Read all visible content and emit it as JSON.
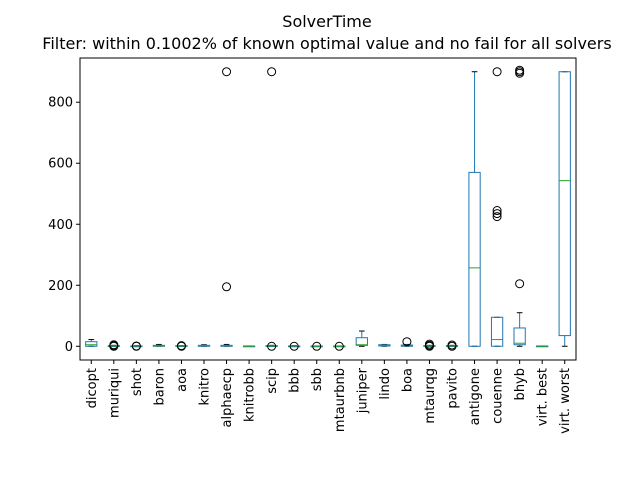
{
  "chart_data": {
    "type": "box",
    "title": "SolverTime",
    "subtitle": "Filter: within 0.1002% of known optimal value and no fail for all solvers",
    "xlabel": "",
    "ylabel": "",
    "ylim": [
      -45,
      945
    ],
    "yticks": [
      0,
      200,
      400,
      600,
      800
    ],
    "legend": "none",
    "grid": false,
    "categories": [
      "dicopt",
      "muriqui",
      "shot",
      "baron",
      "aoa",
      "knitro",
      "alphaecp",
      "knitrobb",
      "scip",
      "bbb",
      "sbb",
      "mtaurbnb",
      "juniper",
      "lindo",
      "boa",
      "mtaurqg",
      "pavito",
      "antigone",
      "couenne",
      "bhyb",
      "virt. best",
      "virt. worst"
    ],
    "boxes": [
      {
        "label": "dicopt",
        "whislo": 0,
        "q1": 0,
        "med": 5,
        "q3": 15,
        "whishi": 22,
        "fliers": []
      },
      {
        "label": "muriqui",
        "whislo": 0,
        "q1": 0,
        "med": 1,
        "q3": 2,
        "whishi": 3,
        "fliers": [
          0,
          2,
          5
        ]
      },
      {
        "label": "shot",
        "whislo": 0,
        "q1": 0,
        "med": 1,
        "q3": 1,
        "whishi": 2,
        "fliers": [
          0,
          1
        ]
      },
      {
        "label": "baron",
        "whislo": 0,
        "q1": 0,
        "med": 1,
        "q3": 3,
        "whishi": 6,
        "fliers": []
      },
      {
        "label": "aoa",
        "whislo": 0,
        "q1": 0,
        "med": 1,
        "q3": 2,
        "whishi": 2,
        "fliers": [
          0,
          2
        ]
      },
      {
        "label": "knitro",
        "whislo": 0,
        "q1": 0,
        "med": 2,
        "q3": 3,
        "whishi": 5,
        "fliers": []
      },
      {
        "label": "alphaecp",
        "whislo": 0,
        "q1": 0,
        "med": 2,
        "q3": 3,
        "whishi": 6,
        "fliers": [
          195,
          900
        ]
      },
      {
        "label": "knitrobb",
        "whislo": 0,
        "q1": 0,
        "med": 0,
        "q3": 1,
        "whishi": 1,
        "fliers": []
      },
      {
        "label": "scip",
        "whislo": 0,
        "q1": 0,
        "med": 1,
        "q3": 2,
        "whishi": 3,
        "fliers": [
          0,
          900
        ]
      },
      {
        "label": "bbb",
        "whislo": 0,
        "q1": 0,
        "med": 1,
        "q3": 1,
        "whishi": 2,
        "fliers": [
          0
        ]
      },
      {
        "label": "sbb",
        "whislo": 0,
        "q1": 0,
        "med": 0,
        "q3": 1,
        "whishi": 1,
        "fliers": [
          0
        ]
      },
      {
        "label": "mtaurbnb",
        "whislo": 0,
        "q1": 0,
        "med": 0,
        "q3": 1,
        "whishi": 1,
        "fliers": [
          0
        ]
      },
      {
        "label": "juniper",
        "whislo": 0,
        "q1": 3,
        "med": 5,
        "q3": 28,
        "whishi": 50,
        "fliers": []
      },
      {
        "label": "lindo",
        "whislo": 0,
        "q1": 1,
        "med": 3,
        "q3": 5,
        "whishi": 6,
        "fliers": []
      },
      {
        "label": "boa",
        "whislo": 0,
        "q1": 0,
        "med": 2,
        "q3": 4,
        "whishi": 6,
        "fliers": [
          15
        ]
      },
      {
        "label": "mtaurqg",
        "whislo": 0,
        "q1": 0,
        "med": 1,
        "q3": 2,
        "whishi": 3,
        "fliers": [
          0,
          3,
          7
        ]
      },
      {
        "label": "pavito",
        "whislo": 0,
        "q1": 0,
        "med": 1,
        "q3": 2,
        "whishi": 3,
        "fliers": [
          0,
          4
        ]
      },
      {
        "label": "antigone",
        "whislo": 0,
        "q1": 0,
        "med": 257,
        "q3": 570,
        "whishi": 900,
        "fliers": []
      },
      {
        "label": "couenne",
        "whislo": 0,
        "q1": 0,
        "med": 22,
        "q3": 95,
        "whishi": 95,
        "fliers": [
          425,
          435,
          445,
          900
        ]
      },
      {
        "label": "bhyb",
        "whislo": 0,
        "q1": 5,
        "med": 10,
        "q3": 60,
        "whishi": 110,
        "fliers": [
          205,
          895,
          900,
          905
        ]
      },
      {
        "label": "virt. best",
        "whislo": 0,
        "q1": 0,
        "med": 0,
        "q3": 1,
        "whishi": 1,
        "fliers": []
      },
      {
        "label": "virt. worst",
        "whislo": 0,
        "q1": 35,
        "med": 543,
        "q3": 900,
        "whishi": 900,
        "fliers": []
      }
    ],
    "colors": {
      "box": "#1f77b4",
      "median": "#2ca02c",
      "flier": "#000000",
      "axis": "#000000"
    }
  }
}
